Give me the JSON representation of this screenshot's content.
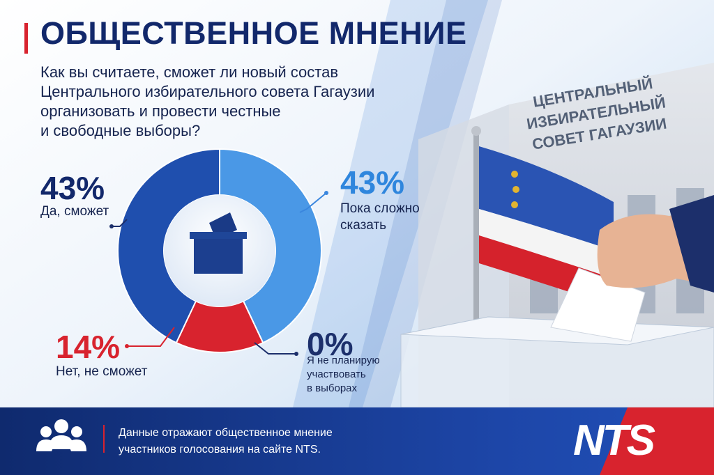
{
  "chart_data": {
    "type": "donut",
    "title": "ОБЩЕСТВЕННОЕ МНЕНИЕ",
    "subtitle": "Как вы считаете, сможет ли новый состав\nЦентрального избирательного совета Гагаузии\nорганизовать и провести честные\nи свободные выборы?",
    "categories": [
      "Пока сложно\nсказать",
      "Я не планирую\nучаствовать\nв выборах",
      "Нет, не сможет",
      "Да, сможет"
    ],
    "values": [
      43,
      0,
      14,
      43
    ],
    "value_labels": [
      "43%",
      "0%",
      "14%",
      "43%"
    ],
    "colors": [
      "#4a98e6",
      "#1c3f8f",
      "#d8232e",
      "#1f4fae"
    ],
    "note": "Данные отражают общественное мнение\nучастников голосования на сайте NTS.",
    "logo": "NTS",
    "sign": "ЦЕНТРАЛЬНЫЙ ИЗБИРАТЕЛЬНЫЙ СОВЕТ ГАГАУЗИИ"
  }
}
